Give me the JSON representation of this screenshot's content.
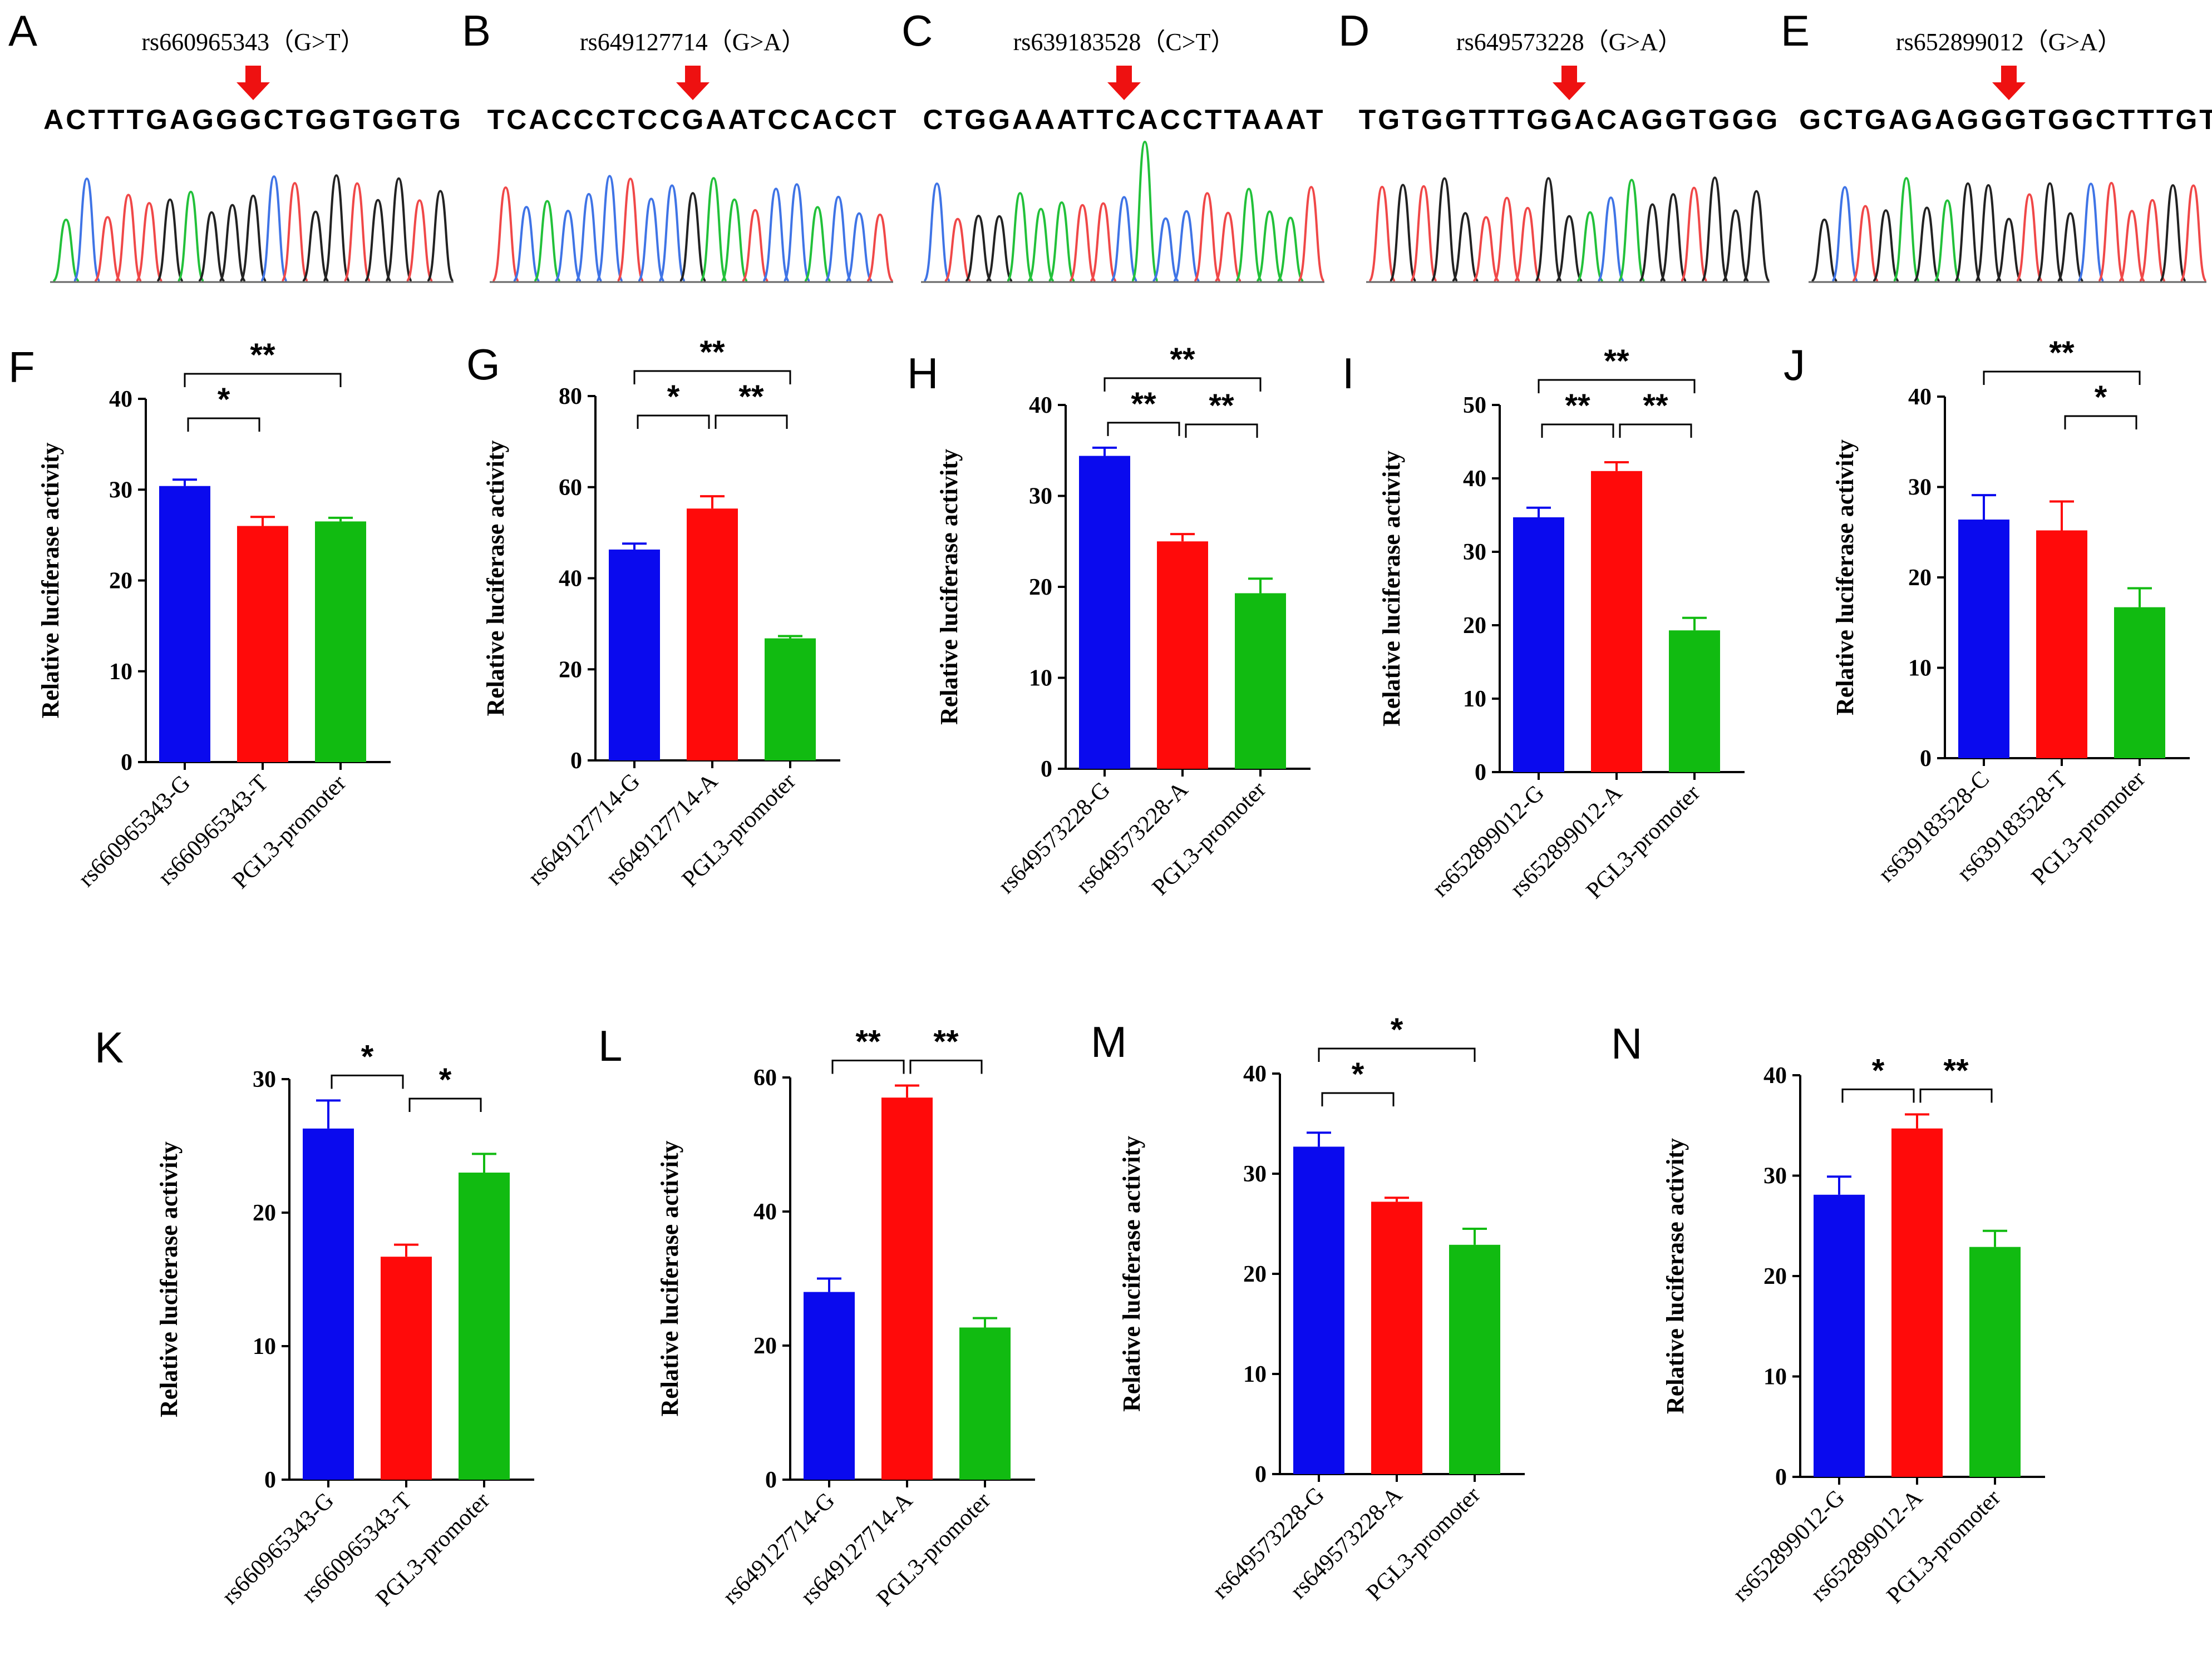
{
  "colors": {
    "G": "#222222",
    "A": "#22c13a",
    "C": "#3f74e6",
    "T": "#f04848",
    "arrow": "#ee1111"
  },
  "bar_colors": [
    "#0a0aee",
    "#ff0a0a",
    "#11bb11"
  ],
  "seq_panels": [
    {
      "letter": "A",
      "title": "rs660965343（G>T）",
      "sequence": "ACTTTGAGGGCTGGTGGTG"
    },
    {
      "letter": "B",
      "title": "rs649127714（G>A）",
      "sequence": "TCACCCTCCGAATCCACCT"
    },
    {
      "letter": "C",
      "title": "rs639183528（C>T）",
      "sequence": "CTGGAAATTCACCTTAAAT"
    },
    {
      "letter": "D",
      "title": "rs649573228（G>A）",
      "sequence": "TGTGGTTTGGACAGGTGGG"
    },
    {
      "letter": "E",
      "title": "rs652899012（G>A）",
      "sequence": "GCTGAGAGGGTGGCTTTGT"
    }
  ],
  "chart_data": [
    {
      "letter": "F",
      "type": "bar",
      "ylabel": "Relative luciferase activity",
      "ylim": [
        0,
        40
      ],
      "yticks": [
        0,
        10,
        20,
        30,
        40
      ],
      "categories": [
        "rs660965343-G",
        "rs660965343-T",
        "PGL3-promoter"
      ],
      "values": [
        30.4,
        26.0,
        26.5
      ],
      "errors": [
        0.7,
        1.0,
        0.4
      ],
      "significance": [
        {
          "from": 0,
          "to": 1,
          "label": "*"
        },
        {
          "from": 0,
          "to": 2,
          "label": "**"
        }
      ]
    },
    {
      "letter": "G",
      "type": "bar",
      "ylabel": "Relative luciferase activity",
      "ylim": [
        0,
        80
      ],
      "yticks": [
        0,
        20,
        40,
        60,
        80
      ],
      "categories": [
        "rs649127714-G",
        "rs649127714-A",
        "PGL3-promoter"
      ],
      "values": [
        46.3,
        55.3,
        26.8
      ],
      "errors": [
        1.3,
        2.7,
        0.5
      ],
      "significance": [
        {
          "from": 0,
          "to": 1,
          "label": "*"
        },
        {
          "from": 1,
          "to": 2,
          "label": "**"
        },
        {
          "from": 0,
          "to": 2,
          "label": "**"
        }
      ]
    },
    {
      "letter": "H",
      "type": "bar",
      "ylabel": "Relative luciferase activity",
      "ylim": [
        0,
        40
      ],
      "yticks": [
        0,
        10,
        20,
        30,
        40
      ],
      "categories": [
        "rs649573228-G",
        "rs649573228-A",
        "PGL3-promoter"
      ],
      "values": [
        34.4,
        25.0,
        19.3
      ],
      "errors": [
        0.9,
        0.8,
        1.6
      ],
      "significance": [
        {
          "from": 0,
          "to": 1,
          "label": "**"
        },
        {
          "from": 1,
          "to": 2,
          "label": "**"
        },
        {
          "from": 0,
          "to": 2,
          "label": "**"
        }
      ]
    },
    {
      "letter": "I",
      "type": "bar",
      "ylabel": "Relative luciferase activity",
      "ylim": [
        0,
        50
      ],
      "yticks": [
        0,
        10,
        20,
        30,
        40,
        50
      ],
      "categories": [
        "rs652899012-G",
        "rs652899012-A",
        "PGL3-promoter"
      ],
      "values": [
        34.7,
        41.0,
        19.3
      ],
      "errors": [
        1.3,
        1.2,
        1.7
      ],
      "significance": [
        {
          "from": 0,
          "to": 1,
          "label": "**"
        },
        {
          "from": 1,
          "to": 2,
          "label": "**"
        },
        {
          "from": 0,
          "to": 2,
          "label": "**"
        }
      ]
    },
    {
      "letter": "J",
      "type": "bar",
      "ylabel": "Relative luciferase activity",
      "ylim": [
        0,
        40
      ],
      "yticks": [
        0,
        10,
        20,
        30,
        40
      ],
      "categories": [
        "rs639183528-C",
        "rs639183528-T",
        "PGL3-promoter"
      ],
      "values": [
        26.4,
        25.2,
        16.7
      ],
      "errors": [
        2.7,
        3.2,
        2.1
      ],
      "significance": [
        {
          "from": 1,
          "to": 2,
          "label": "*"
        },
        {
          "from": 0,
          "to": 2,
          "label": "**"
        }
      ]
    },
    {
      "letter": "K",
      "type": "bar",
      "ylabel": "Relative luciferase activity",
      "ylim": [
        0,
        30
      ],
      "yticks": [
        0,
        10,
        20,
        30
      ],
      "categories": [
        "rs660965343-G",
        "rs660965343-T",
        "PGL3-promoter"
      ],
      "values": [
        26.3,
        16.7,
        23.0
      ],
      "errors": [
        2.1,
        0.9,
        1.4
      ],
      "significance": [
        {
          "from": 0,
          "to": 1,
          "label": "*"
        },
        {
          "from": 1,
          "to": 2,
          "label": "*"
        }
      ]
    },
    {
      "letter": "L",
      "type": "bar",
      "ylabel": "Relative luciferase activity",
      "ylim": [
        0,
        60
      ],
      "yticks": [
        0,
        20,
        40,
        60
      ],
      "categories": [
        "rs649127714-G",
        "rs649127714-A",
        "PGL3-promoter"
      ],
      "values": [
        28.0,
        57.0,
        22.7
      ],
      "errors": [
        2.0,
        1.8,
        1.4
      ],
      "significance": [
        {
          "from": 0,
          "to": 1,
          "label": "**"
        },
        {
          "from": 1,
          "to": 2,
          "label": "**"
        }
      ]
    },
    {
      "letter": "M",
      "type": "bar",
      "ylabel": "Relative luciferase activity",
      "ylim": [
        0,
        40
      ],
      "yticks": [
        0,
        10,
        20,
        30,
        40
      ],
      "categories": [
        "rs649573228-G",
        "rs649573228-A",
        "PGL3-promoter"
      ],
      "values": [
        32.7,
        27.2,
        22.9
      ],
      "errors": [
        1.4,
        0.4,
        1.6
      ],
      "significance": [
        {
          "from": 0,
          "to": 1,
          "label": "*"
        },
        {
          "from": 0,
          "to": 2,
          "label": "*"
        }
      ]
    },
    {
      "letter": "N",
      "type": "bar",
      "ylabel": "Relative luciferase activity",
      "ylim": [
        0,
        40
      ],
      "yticks": [
        0,
        10,
        20,
        30,
        40
      ],
      "categories": [
        "rs652899012-G",
        "rs652899012-A",
        "PGL3-promoter"
      ],
      "values": [
        28.1,
        34.7,
        22.9
      ],
      "errors": [
        1.8,
        1.4,
        1.6
      ],
      "significance": [
        {
          "from": 0,
          "to": 1,
          "label": "*"
        },
        {
          "from": 1,
          "to": 2,
          "label": "**"
        }
      ]
    }
  ]
}
